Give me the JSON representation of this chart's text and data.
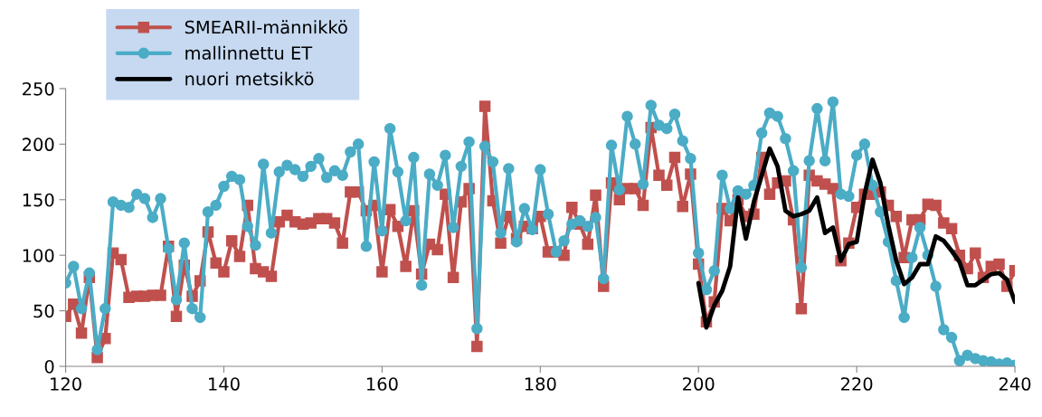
{
  "chart_data": {
    "type": "line",
    "xlim": [
      120,
      240
    ],
    "xticks": [
      120,
      140,
      160,
      180,
      200,
      220,
      240
    ],
    "ylim": [
      0,
      250
    ],
    "yticks": [
      0,
      50,
      100,
      150,
      200,
      250
    ],
    "grid": false,
    "legend": "top left",
    "line_style": "solid",
    "series": [
      {
        "name": "SMEARII-männikkö",
        "color": "#c0504d",
        "marker": "square",
        "x": [
          120,
          121,
          122,
          123,
          124,
          125,
          126,
          127,
          128,
          129,
          130,
          131,
          132,
          133,
          134,
          135,
          136,
          137,
          138,
          139,
          140,
          141,
          142,
          143,
          144,
          145,
          146,
          147,
          148,
          149,
          150,
          151,
          152,
          153,
          154,
          155,
          156,
          157,
          158,
          159,
          160,
          161,
          162,
          163,
          164,
          165,
          166,
          167,
          168,
          169,
          170,
          171,
          172,
          173,
          174,
          175,
          176,
          177,
          178,
          179,
          180,
          181,
          182,
          183,
          184,
          185,
          186,
          187,
          188,
          189,
          190,
          191,
          192,
          193,
          194,
          195,
          196,
          197,
          198,
          199,
          200,
          201,
          202,
          203,
          204,
          205,
          206,
          207,
          208,
          209,
          210,
          211,
          212,
          213,
          214,
          215,
          216,
          217,
          218,
          219,
          220,
          221,
          222,
          223,
          224,
          225,
          226,
          227,
          228,
          229,
          230,
          231,
          232,
          233,
          234,
          235,
          236,
          237,
          238,
          239,
          240
        ],
        "values": [
          45,
          56,
          30,
          80,
          8,
          25,
          102,
          96,
          62,
          63,
          63,
          64,
          64,
          108,
          45,
          91,
          63,
          77,
          121,
          93,
          85,
          113,
          99,
          145,
          88,
          85,
          81,
          130,
          136,
          130,
          128,
          129,
          133,
          133,
          129,
          111,
          157,
          157,
          140,
          145,
          85,
          141,
          126,
          90,
          140,
          83,
          110,
          105,
          155,
          80,
          148,
          160,
          18,
          234,
          149,
          111,
          135,
          115,
          126,
          124,
          135,
          103,
          103,
          100,
          143,
          128,
          110,
          154,
          72,
          165,
          150,
          160,
          160,
          145,
          215,
          172,
          163,
          188,
          144,
          173,
          92,
          40,
          58,
          142,
          131,
          150,
          135,
          137,
          188,
          155,
          165,
          167,
          132,
          52,
          172,
          167,
          164,
          160,
          95,
          111,
          143,
          155,
          155,
          157,
          145,
          135,
          98,
          132,
          132,
          146,
          145,
          129,
          124,
          100,
          88,
          102,
          80,
          90,
          92,
          72,
          86
        ]
      },
      {
        "name": "mallinnettu ET",
        "color": "#4bacc6",
        "marker": "circle",
        "x": [
          120,
          121,
          122,
          123,
          124,
          125,
          126,
          127,
          128,
          129,
          130,
          131,
          132,
          133,
          134,
          135,
          136,
          137,
          138,
          139,
          140,
          141,
          142,
          143,
          144,
          145,
          146,
          147,
          148,
          149,
          150,
          151,
          152,
          153,
          154,
          155,
          156,
          157,
          158,
          159,
          160,
          161,
          162,
          163,
          164,
          165,
          166,
          167,
          168,
          169,
          170,
          171,
          172,
          173,
          174,
          175,
          176,
          177,
          178,
          179,
          180,
          181,
          182,
          183,
          184,
          185,
          186,
          187,
          188,
          189,
          190,
          191,
          192,
          193,
          194,
          195,
          196,
          197,
          198,
          199,
          200,
          201,
          202,
          203,
          204,
          205,
          206,
          207,
          208,
          209,
          210,
          211,
          212,
          213,
          214,
          215,
          216,
          217,
          218,
          219,
          220,
          221,
          222,
          223,
          224,
          225,
          226,
          227,
          228,
          229,
          230,
          231,
          232,
          233,
          234,
          235,
          236,
          237,
          238,
          239,
          240
        ],
        "values": [
          75,
          90,
          52,
          84,
          15,
          52,
          148,
          145,
          143,
          155,
          151,
          134,
          151,
          106,
          60,
          111,
          52,
          44,
          139,
          145,
          162,
          171,
          168,
          126,
          109,
          182,
          120,
          175,
          181,
          177,
          171,
          180,
          187,
          170,
          176,
          172,
          193,
          200,
          108,
          184,
          122,
          214,
          175,
          131,
          188,
          73,
          173,
          163,
          190,
          125,
          180,
          202,
          34,
          198,
          184,
          120,
          178,
          112,
          142,
          123,
          177,
          137,
          103,
          113,
          128,
          131,
          126,
          134,
          79,
          199,
          159,
          225,
          200,
          164,
          235,
          217,
          214,
          227,
          203,
          187,
          102,
          69,
          86,
          172,
          142,
          158,
          155,
          163,
          210,
          228,
          225,
          205,
          176,
          89,
          185,
          232,
          185,
          238,
          155,
          153,
          190,
          200,
          163,
          139,
          112,
          77,
          44,
          98,
          125,
          100,
          72,
          33,
          26,
          5,
          10,
          7,
          5,
          4,
          2,
          3,
          1
        ]
      },
      {
        "name": "nuori metsikkö",
        "color": "#000000",
        "marker": "none",
        "x": [
          200,
          201,
          202,
          203,
          204,
          205,
          206,
          207,
          208,
          209,
          210,
          211,
          212,
          213,
          214,
          215,
          216,
          217,
          218,
          219,
          220,
          221,
          222,
          223,
          224,
          225,
          226,
          227,
          228,
          229,
          230,
          231,
          232,
          233,
          234,
          235,
          236,
          237,
          238,
          239,
          240
        ],
        "values": [
          75,
          35,
          55,
          68,
          90,
          152,
          115,
          148,
          172,
          196,
          180,
          140,
          135,
          137,
          140,
          152,
          120,
          125,
          95,
          110,
          112,
          155,
          186,
          165,
          127,
          95,
          74,
          80,
          92,
          92,
          117,
          113,
          104,
          94,
          73,
          73,
          78,
          83,
          84,
          78,
          58
        ]
      }
    ]
  }
}
